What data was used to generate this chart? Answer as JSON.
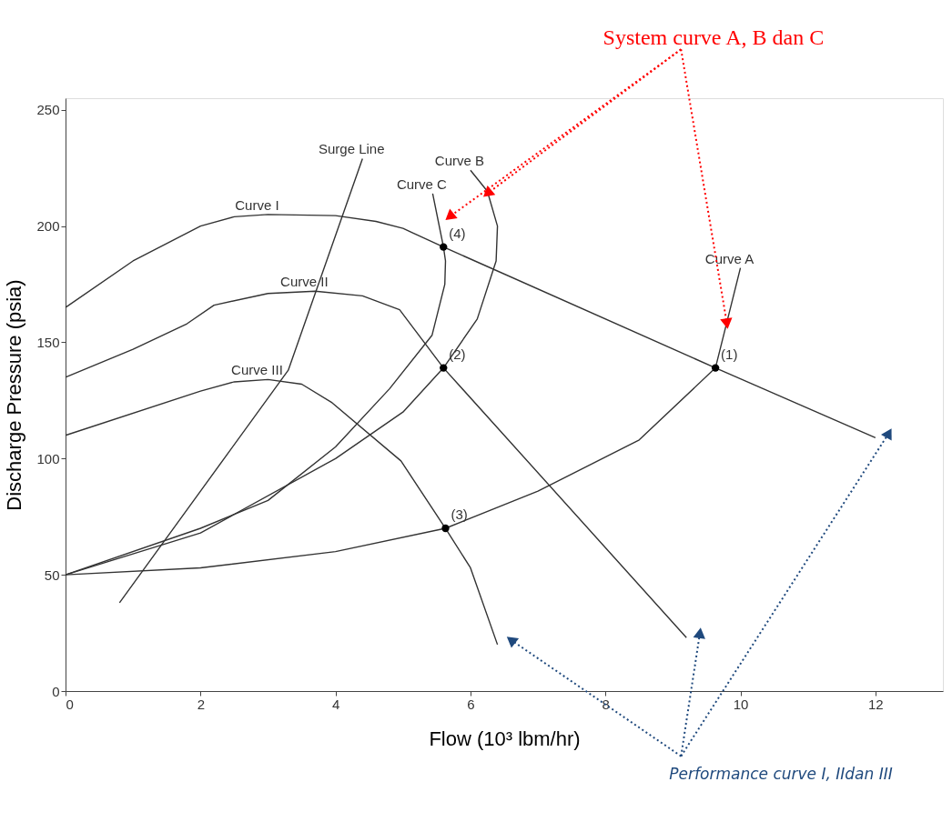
{
  "chart_data": {
    "type": "line",
    "xlabel": "Flow (10³ lbm/hr)",
    "ylabel": "Discharge Pressure (psia)",
    "xlim": [
      0,
      13
    ],
    "ylim": [
      0,
      255
    ],
    "xticks": [
      0,
      2,
      4,
      6,
      8,
      10,
      12
    ],
    "yticks": [
      0,
      50,
      100,
      150,
      200,
      250
    ],
    "grid": false,
    "legend": false,
    "marker": "none",
    "line_style": "solid",
    "series": [
      {
        "name": "Curve I",
        "color": "#333333",
        "x": [
          0,
          1,
          2,
          2.5,
          3,
          4,
          4.6,
          5,
          5.6,
          9.63,
          12
        ],
        "values": [
          165,
          185,
          200,
          204,
          205,
          204.5,
          202,
          199,
          191,
          139,
          109
        ]
      },
      {
        "name": "Curve II",
        "color": "#333333",
        "x": [
          0,
          1,
          1.8,
          2.2,
          3,
          3.7,
          4.4,
          4.95,
          5.6,
          9.2
        ],
        "values": [
          135,
          147,
          158,
          166,
          171,
          172,
          170,
          164,
          139,
          23
        ]
      },
      {
        "name": "Curve III",
        "color": "#333333",
        "x": [
          0,
          2,
          2.5,
          3,
          3.5,
          3.95,
          4.97,
          5.63,
          6,
          6.4
        ],
        "values": [
          110,
          129,
          133,
          134,
          132,
          124,
          99,
          70,
          53,
          20
        ]
      },
      {
        "name": "Surge Line",
        "color": "#333333",
        "x": [
          0.8,
          2,
          3.3,
          4.4
        ],
        "values": [
          38,
          86,
          138,
          229
        ]
      },
      {
        "name": "Curve A",
        "color": "#333333",
        "x": [
          0,
          2,
          4,
          5.63,
          7,
          8.5,
          9.63,
          10.0
        ],
        "values": [
          50,
          53,
          60,
          70,
          86,
          108,
          139,
          182
        ]
      },
      {
        "name": "Curve B",
        "color": "#333333",
        "x": [
          0,
          2,
          4,
          5,
          5.6,
          6.1,
          6.38,
          6.4,
          6.25,
          6.0
        ],
        "values": [
          50,
          68,
          100,
          120,
          139,
          160,
          185,
          200,
          215,
          224
        ]
      },
      {
        "name": "Curve C",
        "color": "#333333",
        "x": [
          0,
          2,
          3,
          4,
          4.8,
          5.43,
          5.62,
          5.63,
          5.6,
          5.44
        ],
        "values": [
          50,
          70,
          82,
          105,
          130,
          153,
          175,
          185,
          191,
          214
        ]
      },
      {
        "type": "scatter",
        "marker": "circle",
        "color": "#000000",
        "x": [
          9.63,
          5.6,
          5.63,
          5.6
        ],
        "values": [
          139,
          139,
          70,
          191
        ]
      }
    ],
    "annotations": [
      {
        "text": "(1)",
        "x": 9.63,
        "y": 139
      },
      {
        "text": "(2)",
        "x": 5.6,
        "y": 139
      },
      {
        "text": "(3)",
        "x": 5.63,
        "y": 70
      },
      {
        "text": "(4)",
        "x": 5.6,
        "y": 191
      },
      {
        "text": "System curve A, B dan C",
        "x": 9.8,
        "y": 158
      },
      "Performance curve I, IIdan III"
    ]
  }
}
